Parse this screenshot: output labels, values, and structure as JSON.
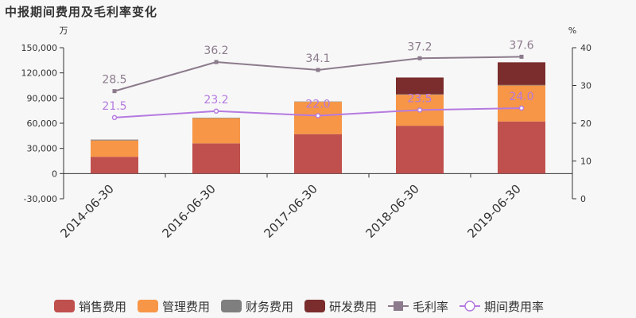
{
  "chart_data": {
    "type": "bar",
    "title": "中报期间费用及毛利率变化",
    "categories": [
      "2014-06-30",
      "2016-06-30",
      "2017-06-30",
      "2018-06-30",
      "2019-06-30"
    ],
    "y_left": {
      "unit": "万",
      "ylim": [
        -30000,
        150000
      ],
      "ticks": [
        -30000,
        0,
        30000,
        60000,
        90000,
        120000,
        150000
      ],
      "tick_labels": [
        "-30,000",
        "0",
        "30,000",
        "60,000",
        "90,000",
        "120,000",
        "150,000"
      ]
    },
    "y_right": {
      "unit": "%",
      "ylim": [
        0,
        40
      ],
      "ticks": [
        0,
        10,
        20,
        30,
        40
      ],
      "tick_labels": [
        "0",
        "10",
        "20",
        "30",
        "40"
      ]
    },
    "bar_series": [
      {
        "name": "销售费用",
        "color": "#c0504d",
        "values": [
          20000,
          36000,
          47000,
          57000,
          62000
        ]
      },
      {
        "name": "管理费用",
        "color": "#f79646",
        "values": [
          19500,
          30000,
          38500,
          37000,
          43000
        ]
      },
      {
        "name": "财务费用",
        "color": "#7f7f7f",
        "values": [
          1000,
          600,
          400,
          500,
          600
        ]
      },
      {
        "name": "研发费用",
        "color": "#7b2c2c",
        "values": [
          0,
          0,
          0,
          20000,
          27000
        ]
      }
    ],
    "line_series": [
      {
        "name": "毛利率",
        "color": "#8c7b8c",
        "marker": "square",
        "values": [
          28.5,
          36.2,
          34.1,
          37.2,
          37.6
        ],
        "labels": [
          "28.5",
          "36.2",
          "34.1",
          "37.2",
          "37.6"
        ]
      },
      {
        "name": "期间费用率",
        "color": "#b57ae0",
        "marker": "circle",
        "values": [
          21.5,
          23.2,
          22.0,
          23.5,
          24.0
        ],
        "labels": [
          "21.5",
          "23.2",
          "22.0",
          "23.5",
          "24.0"
        ]
      }
    ],
    "grid": false,
    "legend_position": "bottom"
  }
}
